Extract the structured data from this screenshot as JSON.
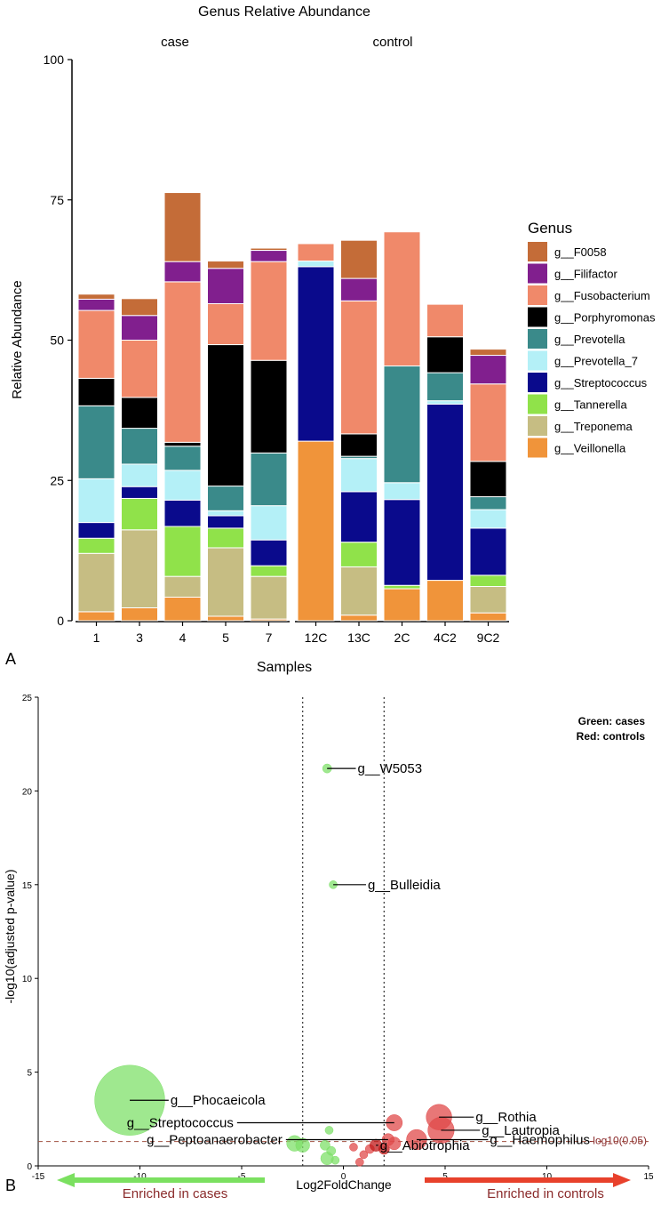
{
  "figure": {
    "panel_a_label": "A",
    "panel_b_label": "B"
  },
  "chart_data": [
    {
      "type": "bar",
      "stacked": true,
      "title": "Genus Relative Abundance",
      "xlabel": "Samples",
      "ylabel": "Relative Abundance",
      "ylim": [
        0,
        100
      ],
      "yticks": [
        0,
        25,
        50,
        75,
        100
      ],
      "facets": [
        {
          "name": "case",
          "categories": [
            "1",
            "3",
            "4",
            "5",
            "7"
          ]
        },
        {
          "name": "control",
          "categories": [
            "12C",
            "13C",
            "2C",
            "4C2",
            "9C2"
          ]
        }
      ],
      "legend": {
        "title": "Genus",
        "position": "right"
      },
      "series": [
        {
          "name": "g__Veillonella",
          "color": "#f0943a",
          "values": [
            1.6,
            2.3,
            4.2,
            0.8,
            0.3,
            32.0,
            1.0,
            5.7,
            7.2,
            1.4
          ]
        },
        {
          "name": "g__Treponema",
          "color": "#c6bd83",
          "values": [
            10.4,
            13.9,
            3.7,
            12.2,
            7.6,
            0.0,
            8.6,
            0.0,
            0.0,
            4.7
          ]
        },
        {
          "name": "g__Tannerella",
          "color": "#90e24a",
          "values": [
            2.7,
            5.6,
            8.9,
            3.5,
            1.9,
            0.0,
            4.4,
            0.6,
            0.0,
            2.0
          ]
        },
        {
          "name": "g__Streptococcus",
          "color": "#0a0a8c",
          "values": [
            2.8,
            2.1,
            4.7,
            2.2,
            4.6,
            31.1,
            9.0,
            15.3,
            31.4,
            8.4
          ]
        },
        {
          "name": "g__Prevotella_7",
          "color": "#b4f0f7",
          "values": [
            7.8,
            4.0,
            5.3,
            0.9,
            6.1,
            1.0,
            5.9,
            3.0,
            0.6,
            3.3
          ]
        },
        {
          "name": "g__Prevotella",
          "color": "#3a8a8a",
          "values": [
            13.0,
            6.4,
            4.3,
            4.4,
            9.4,
            0.0,
            0.4,
            20.8,
            5.0,
            2.3
          ]
        },
        {
          "name": "g__Porphyromonas",
          "color": "#000000",
          "values": [
            4.9,
            5.5,
            0.7,
            25.2,
            16.5,
            0.0,
            4.0,
            0.0,
            6.4,
            6.3
          ]
        },
        {
          "name": "g__Fusobacterium",
          "color": "#f0896a",
          "values": [
            12.1,
            10.2,
            28.6,
            7.3,
            17.6,
            3.1,
            23.7,
            23.9,
            5.8,
            13.8
          ]
        },
        {
          "name": "g__Filifactor",
          "color": "#811f8e",
          "values": [
            2.0,
            4.4,
            3.6,
            6.3,
            2.0,
            0.0,
            4.0,
            0.0,
            0.0,
            5.1
          ]
        },
        {
          "name": "g__F0058",
          "color": "#c46c38",
          "values": [
            0.9,
            3.0,
            12.3,
            1.3,
            0.4,
            0.0,
            6.8,
            0.0,
            0.0,
            1.1
          ]
        }
      ]
    },
    {
      "type": "scatter",
      "subtype": "volcano",
      "xlabel": "Log2FoldChange",
      "ylabel": "-log10(adjusted p-value)",
      "xlim": [
        -15,
        15
      ],
      "ylim": [
        0,
        25
      ],
      "xticks": [
        -15,
        -10,
        -5,
        0,
        5,
        10,
        15
      ],
      "yticks": [
        0,
        5,
        10,
        15,
        20,
        25
      ],
      "vlines": [
        -2,
        2
      ],
      "hline": {
        "y": 1.3,
        "label": "-log10(0.05)"
      },
      "legend_note": [
        "Green: cases",
        "Red: controls"
      ],
      "arrows": [
        {
          "label": "Enriched in cases",
          "direction": "left",
          "color": "#7be060"
        },
        {
          "label": "Enriched in controls",
          "direction": "right",
          "color": "#e8412c"
        }
      ],
      "colors": {
        "cases": "#7fe06a",
        "controls": "#e04a4a",
        "controls_dark": "#c01818",
        "threshold": "#a05040",
        "label_text": "#8a2a2a"
      },
      "points": [
        {
          "x": -0.8,
          "y": 21.2,
          "group": "cases",
          "size": 0.5,
          "label": "g__W5053",
          "label_x": 0.7
        },
        {
          "x": -0.5,
          "y": 15.0,
          "group": "cases",
          "size": 0.4,
          "label": "g__Bulleidia",
          "label_x": 1.2
        },
        {
          "x": -10.5,
          "y": 3.5,
          "group": "cases",
          "size": 30,
          "label": "g__Phocaeicola",
          "label_x": -8.5
        },
        {
          "x": -2.4,
          "y": 1.2,
          "group": "cases",
          "size": 1.5
        },
        {
          "x": -2.0,
          "y": 1.1,
          "group": "cases",
          "size": 1.2
        },
        {
          "x": -0.8,
          "y": 0.4,
          "group": "cases",
          "size": 1.0
        },
        {
          "x": -0.9,
          "y": 1.1,
          "group": "cases",
          "size": 0.6
        },
        {
          "x": -0.6,
          "y": 0.8,
          "group": "cases",
          "size": 0.5
        },
        {
          "x": -0.4,
          "y": 0.3,
          "group": "cases",
          "size": 0.4
        },
        {
          "x": -0.7,
          "y": 1.9,
          "group": "cases",
          "size": 0.4
        },
        {
          "x": 0.5,
          "y": 1.0,
          "group": "controls",
          "size": 0.4
        },
        {
          "x": 1.0,
          "y": 0.6,
          "group": "controls",
          "size": 0.4
        },
        {
          "x": 1.3,
          "y": 0.9,
          "group": "controls",
          "size": 0.5
        },
        {
          "x": 0.8,
          "y": 0.2,
          "group": "controls",
          "size": 0.4
        },
        {
          "x": 1.6,
          "y": 1.1,
          "group": "controls_dark",
          "size": 0.9,
          "label": "g__Abiotrophia",
          "label_x": 1.8
        },
        {
          "x": 2.0,
          "y": 0.9,
          "group": "controls_dark",
          "size": 0.7
        },
        {
          "x": 2.5,
          "y": 1.2,
          "group": "controls",
          "size": 1.0
        },
        {
          "x": 2.2,
          "y": 1.4,
          "group": "controls",
          "size": 0.9,
          "label": "g__Peptoanaerobacter",
          "label_x": -3.0
        },
        {
          "x": 3.6,
          "y": 1.4,
          "group": "controls",
          "size": 2.5,
          "label": "g__Haemophilus",
          "label_x": 7.2
        },
        {
          "x": 2.5,
          "y": 2.3,
          "group": "controls",
          "size": 1.6,
          "label": "g__Streptococcus",
          "label_x": -5.4
        },
        {
          "x": 4.7,
          "y": 2.6,
          "group": "controls",
          "size": 4.0,
          "label": "g__Rothia",
          "label_x": 6.5
        },
        {
          "x": 4.8,
          "y": 1.9,
          "group": "controls",
          "size": 4.2,
          "label": "g__Lautropia",
          "label_x": 6.8
        }
      ]
    }
  ]
}
